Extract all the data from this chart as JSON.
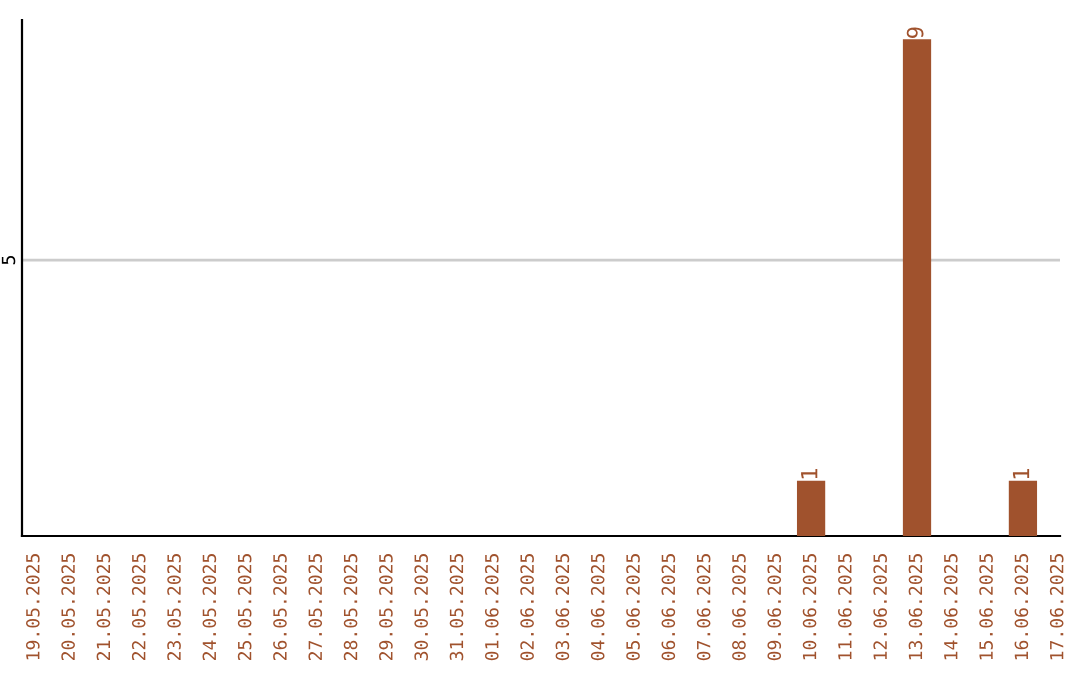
{
  "chart_data": {
    "type": "bar",
    "categories": [
      "19.05.2025",
      "20.05.2025",
      "21.05.2025",
      "22.05.2025",
      "23.05.2025",
      "24.05.2025",
      "25.05.2025",
      "26.05.2025",
      "27.05.2025",
      "28.05.2025",
      "29.05.2025",
      "30.05.2025",
      "31.05.2025",
      "01.06.2025",
      "02.06.2025",
      "03.06.2025",
      "04.06.2025",
      "05.06.2025",
      "06.06.2025",
      "07.06.2025",
      "08.06.2025",
      "09.06.2025",
      "10.06.2025",
      "11.06.2025",
      "12.06.2025",
      "13.06.2025",
      "14.06.2025",
      "15.06.2025",
      "16.06.2025",
      "17.06.2025"
    ],
    "values": [
      null,
      null,
      null,
      null,
      null,
      null,
      null,
      null,
      null,
      null,
      null,
      null,
      null,
      null,
      null,
      null,
      null,
      null,
      null,
      null,
      null,
      null,
      1,
      null,
      null,
      9,
      null,
      null,
      1,
      null
    ],
    "value_labels": [
      null,
      null,
      null,
      null,
      null,
      null,
      null,
      null,
      null,
      null,
      null,
      null,
      null,
      null,
      null,
      null,
      null,
      null,
      null,
      null,
      null,
      null,
      "1",
      null,
      null,
      "9",
      null,
      null,
      "1",
      null
    ],
    "color": "#a0522d",
    "ylim": [
      0,
      9.35
    ],
    "ref_lines": [
      {
        "axis": "y",
        "value": 5,
        "label": "5",
        "color": "#cccccc"
      }
    ],
    "legend": false
  }
}
